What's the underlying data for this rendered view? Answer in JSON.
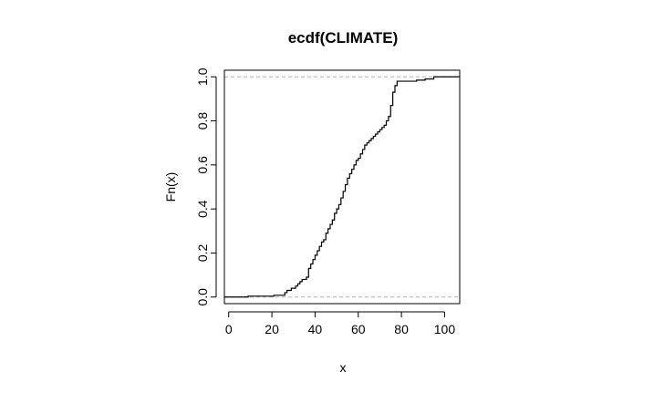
{
  "chart_data": {
    "type": "line",
    "subtype": "step-ecdf",
    "title": "ecdf(CLIMATE)",
    "xlabel": "x",
    "ylabel": "Fn(x)",
    "xlim": [
      -2,
      107
    ],
    "ylim": [
      -0.03,
      1.03
    ],
    "x_ticks": [
      0,
      20,
      40,
      60,
      80,
      100
    ],
    "y_ticks": [
      0.0,
      0.2,
      0.4,
      0.6,
      0.8,
      1.0
    ],
    "x_tick_labels": [
      "0",
      "20",
      "40",
      "60",
      "80",
      "100"
    ],
    "y_tick_labels": [
      "0.0",
      "0.2",
      "0.4",
      "0.6",
      "0.8",
      "1.0"
    ],
    "reference_lines": [
      0,
      1
    ],
    "grid": false,
    "legend": "none",
    "colors": {
      "line": "#000000",
      "reference": "#b3b3b3"
    },
    "series": [
      {
        "points": [
          [
            -2,
            0.0
          ],
          [
            8,
            0.0
          ],
          [
            9,
            0.004
          ],
          [
            20,
            0.004
          ],
          [
            21,
            0.008
          ],
          [
            25,
            0.008
          ],
          [
            26,
            0.02
          ],
          [
            27,
            0.03
          ],
          [
            29,
            0.04
          ],
          [
            31,
            0.05
          ],
          [
            32,
            0.06
          ],
          [
            33,
            0.07
          ],
          [
            34,
            0.08
          ],
          [
            36,
            0.09
          ],
          [
            37,
            0.13
          ],
          [
            38,
            0.15
          ],
          [
            39,
            0.17
          ],
          [
            40,
            0.19
          ],
          [
            41,
            0.21
          ],
          [
            42,
            0.23
          ],
          [
            43,
            0.25
          ],
          [
            44,
            0.26
          ],
          [
            45,
            0.29
          ],
          [
            46,
            0.31
          ],
          [
            47,
            0.33
          ],
          [
            48,
            0.35
          ],
          [
            49,
            0.38
          ],
          [
            50,
            0.4
          ],
          [
            51,
            0.42
          ],
          [
            52,
            0.45
          ],
          [
            53,
            0.48
          ],
          [
            54,
            0.51
          ],
          [
            55,
            0.54
          ],
          [
            56,
            0.56
          ],
          [
            57,
            0.58
          ],
          [
            58,
            0.6
          ],
          [
            59,
            0.62
          ],
          [
            60,
            0.63
          ],
          [
            61,
            0.65
          ],
          [
            62,
            0.67
          ],
          [
            63,
            0.69
          ],
          [
            64,
            0.7
          ],
          [
            65,
            0.71
          ],
          [
            66,
            0.72
          ],
          [
            67,
            0.73
          ],
          [
            68,
            0.74
          ],
          [
            69,
            0.75
          ],
          [
            70,
            0.76
          ],
          [
            71,
            0.77
          ],
          [
            72,
            0.78
          ],
          [
            73,
            0.8
          ],
          [
            74,
            0.82
          ],
          [
            75,
            0.87
          ],
          [
            76,
            0.93
          ],
          [
            77,
            0.96
          ],
          [
            78,
            0.98
          ],
          [
            86,
            0.98
          ],
          [
            87,
            0.985
          ],
          [
            90,
            0.985
          ],
          [
            91,
            0.99
          ],
          [
            94,
            0.99
          ],
          [
            95,
            1.0
          ],
          [
            107,
            1.0
          ]
        ]
      }
    ]
  }
}
